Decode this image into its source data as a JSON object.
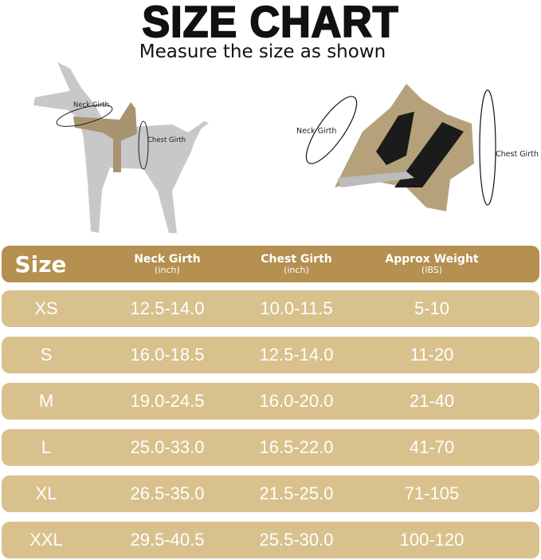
{
  "title": "SIZE CHART",
  "subtitle": "Measure the size as shown",
  "illustration_labels": {
    "dog_neck": "Neck Girth",
    "dog_chest": "Chest Girth",
    "harness_neck": "Neck Girth",
    "harness_chest": "Chest Girth"
  },
  "colors": {
    "header": "#b59050",
    "row": "#d8c18c",
    "text": "#ffffff"
  },
  "table": {
    "headers": [
      {
        "label": "Size",
        "unit": ""
      },
      {
        "label": "Neck Girth",
        "unit": "(inch)"
      },
      {
        "label": "Chest Girth",
        "unit": "(inch)"
      },
      {
        "label": "Approx Weight",
        "unit": "(IBS)"
      }
    ],
    "rows": [
      [
        "XS",
        "12.5-14.0",
        "10.0-11.5",
        "5-10"
      ],
      [
        "S",
        "16.0-18.5",
        "12.5-14.0",
        "11-20"
      ],
      [
        "M",
        "19.0-24.5",
        "16.0-20.0",
        "21-40"
      ],
      [
        "L",
        "25.0-33.0",
        "16.5-22.0",
        "41-70"
      ],
      [
        "XL",
        "26.5-35.0",
        "21.5-25.0",
        "71-105"
      ],
      [
        "XXL",
        "29.5-40.5",
        "25.5-30.0",
        "100-120"
      ]
    ]
  }
}
